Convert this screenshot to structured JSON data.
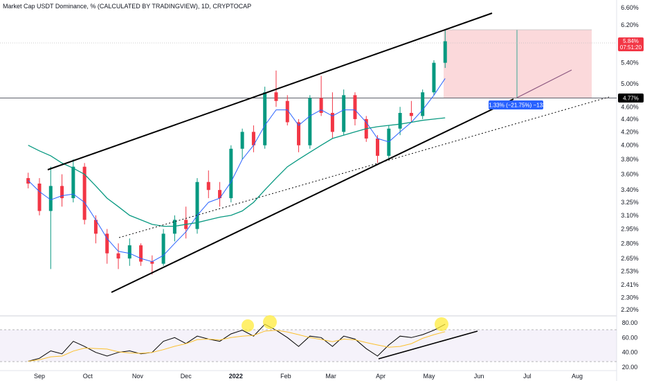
{
  "chart_data": {
    "type": "candlestick",
    "title": "Market Cap USDT Dominance, % (CALCULATED BY TRADINGVIEW), 1D, CRYPTOCAP",
    "log_scale": true,
    "y_ticks": [
      "6.60%",
      "6.20%",
      "5.80%",
      "5.40%",
      "5.00%",
      "4.60%",
      "4.40%",
      "4.20%",
      "4.00%",
      "3.80%",
      "3.60%",
      "3.40%",
      "3.25%",
      "3.10%",
      "2.95%",
      "2.80%",
      "2.65%",
      "2.53%",
      "2.41%",
      "2.30%",
      "2.20%"
    ],
    "x_ticks": [
      "Sep",
      "Oct",
      "Nov",
      "Dec",
      "2022",
      "Feb",
      "Mar",
      "Apr",
      "May",
      "Jun",
      "Jul",
      "Aug"
    ],
    "ylim": [
      2.2,
      6.6
    ],
    "price_tag": {
      "value": "5.84%",
      "countdown": "07:51:20",
      "color": "#f23645"
    },
    "level_tag": {
      "value": "4.77%"
    },
    "measure_label": "−1.33% (−21.75%) −133",
    "candles": [
      {
        "date": "2021-08-25",
        "o": 3.55,
        "h": 3.62,
        "l": 3.42,
        "c": 3.48
      },
      {
        "date": "2021-09-01",
        "o": 3.48,
        "h": 3.55,
        "l": 3.1,
        "c": 3.15
      },
      {
        "date": "2021-09-08",
        "o": 3.15,
        "h": 3.7,
        "l": 2.55,
        "c": 3.45
      },
      {
        "date": "2021-09-15",
        "o": 3.45,
        "h": 3.6,
        "l": 3.2,
        "c": 3.3
      },
      {
        "date": "2021-09-22",
        "o": 3.3,
        "h": 3.8,
        "l": 3.25,
        "c": 3.7
      },
      {
        "date": "2021-09-29",
        "o": 3.7,
        "h": 3.75,
        "l": 3.0,
        "c": 3.05
      },
      {
        "date": "2021-10-06",
        "o": 3.05,
        "h": 3.1,
        "l": 2.8,
        "c": 2.9
      },
      {
        "date": "2021-10-13",
        "o": 2.9,
        "h": 2.95,
        "l": 2.6,
        "c": 2.7
      },
      {
        "date": "2021-10-20",
        "o": 2.7,
        "h": 2.8,
        "l": 2.55,
        "c": 2.65
      },
      {
        "date": "2021-10-27",
        "o": 2.65,
        "h": 2.85,
        "l": 2.58,
        "c": 2.78
      },
      {
        "date": "2021-11-03",
        "o": 2.78,
        "h": 2.8,
        "l": 2.58,
        "c": 2.62
      },
      {
        "date": "2021-11-10",
        "o": 2.62,
        "h": 2.68,
        "l": 2.5,
        "c": 2.6
      },
      {
        "date": "2021-11-17",
        "o": 2.6,
        "h": 2.95,
        "l": 2.58,
        "c": 2.9
      },
      {
        "date": "2021-11-24",
        "o": 2.9,
        "h": 3.1,
        "l": 2.82,
        "c": 3.05
      },
      {
        "date": "2021-12-01",
        "o": 3.05,
        "h": 3.2,
        "l": 2.85,
        "c": 2.95
      },
      {
        "date": "2021-12-08",
        "o": 2.95,
        "h": 3.55,
        "l": 2.9,
        "c": 3.5
      },
      {
        "date": "2021-12-15",
        "o": 3.5,
        "h": 3.65,
        "l": 3.3,
        "c": 3.4
      },
      {
        "date": "2021-12-22",
        "o": 3.4,
        "h": 3.5,
        "l": 3.2,
        "c": 3.3
      },
      {
        "date": "2021-12-29",
        "o": 3.3,
        "h": 4.0,
        "l": 3.25,
        "c": 3.95
      },
      {
        "date": "2022-01-05",
        "o": 3.95,
        "h": 4.25,
        "l": 3.8,
        "c": 4.2
      },
      {
        "date": "2022-01-12",
        "o": 4.2,
        "h": 4.3,
        "l": 3.9,
        "c": 4.0
      },
      {
        "date": "2022-01-19",
        "o": 4.0,
        "h": 4.95,
        "l": 3.95,
        "c": 4.85
      },
      {
        "date": "2022-01-26",
        "o": 4.85,
        "h": 5.25,
        "l": 4.6,
        "c": 4.7
      },
      {
        "date": "2022-02-02",
        "o": 4.7,
        "h": 4.8,
        "l": 4.3,
        "c": 4.35
      },
      {
        "date": "2022-02-09",
        "o": 4.35,
        "h": 4.4,
        "l": 3.9,
        "c": 4.0
      },
      {
        "date": "2022-02-16",
        "o": 4.0,
        "h": 4.8,
        "l": 3.95,
        "c": 4.75
      },
      {
        "date": "2022-02-23",
        "o": 4.75,
        "h": 5.15,
        "l": 4.45,
        "c": 4.5
      },
      {
        "date": "2022-03-02",
        "o": 4.5,
        "h": 4.85,
        "l": 4.1,
        "c": 4.2
      },
      {
        "date": "2022-03-09",
        "o": 4.2,
        "h": 4.9,
        "l": 4.15,
        "c": 4.8
      },
      {
        "date": "2022-03-16",
        "o": 4.8,
        "h": 4.85,
        "l": 4.3,
        "c": 4.4
      },
      {
        "date": "2022-03-23",
        "o": 4.4,
        "h": 4.45,
        "l": 4.05,
        "c": 4.1
      },
      {
        "date": "2022-03-30",
        "o": 4.1,
        "h": 4.15,
        "l": 3.75,
        "c": 3.85
      },
      {
        "date": "2022-04-06",
        "o": 3.85,
        "h": 4.3,
        "l": 3.8,
        "c": 4.25
      },
      {
        "date": "2022-04-13",
        "o": 4.25,
        "h": 4.6,
        "l": 4.15,
        "c": 4.5
      },
      {
        "date": "2022-04-20",
        "o": 4.5,
        "h": 4.7,
        "l": 4.35,
        "c": 4.45
      },
      {
        "date": "2022-04-27",
        "o": 4.45,
        "h": 4.9,
        "l": 4.4,
        "c": 4.85
      },
      {
        "date": "2022-05-04",
        "o": 4.85,
        "h": 5.45,
        "l": 4.8,
        "c": 5.4
      },
      {
        "date": "2022-05-11",
        "o": 5.4,
        "h": 6.1,
        "l": 5.3,
        "c": 5.84
      }
    ],
    "series": [
      {
        "name": "",
        "color": "#2962ff",
        "values": [
          3.52,
          3.38,
          3.28,
          3.33,
          3.35,
          3.25,
          3.05,
          2.85,
          2.72,
          2.7,
          2.65,
          2.62,
          2.68,
          2.8,
          2.92,
          3.1,
          3.25,
          3.3,
          3.5,
          3.8,
          4.0,
          4.3,
          4.55,
          4.55,
          4.3,
          4.45,
          4.55,
          4.45,
          4.55,
          4.55,
          4.35,
          4.1,
          4.05,
          4.2,
          4.35,
          4.55,
          4.8,
          5.1
        ]
      },
      {
        "name": "",
        "color": "#089981",
        "values": [
          4.0,
          3.92,
          3.85,
          3.75,
          3.68,
          3.6,
          3.45,
          3.3,
          3.2,
          3.1,
          3.05,
          3.0,
          2.98,
          2.98,
          3.0,
          3.02,
          3.05,
          3.08,
          3.1,
          3.15,
          3.25,
          3.4,
          3.55,
          3.7,
          3.8,
          3.9,
          4.0,
          4.1,
          4.15,
          4.2,
          4.25,
          4.28,
          4.3,
          4.32,
          4.35,
          4.38,
          4.4,
          4.42
        ]
      }
    ]
  },
  "rsi": {
    "ticks": [
      "80.00",
      "60.00",
      "40.00",
      "20.00"
    ],
    "ylim": [
      20,
      85
    ],
    "values": [
      28,
      32,
      42,
      38,
      55,
      48,
      40,
      35,
      40,
      42,
      38,
      40,
      55,
      60,
      52,
      62,
      58,
      55,
      65,
      70,
      62,
      78,
      70,
      60,
      48,
      62,
      60,
      48,
      62,
      58,
      45,
      35,
      50,
      62,
      60,
      64,
      70,
      78
    ]
  }
}
